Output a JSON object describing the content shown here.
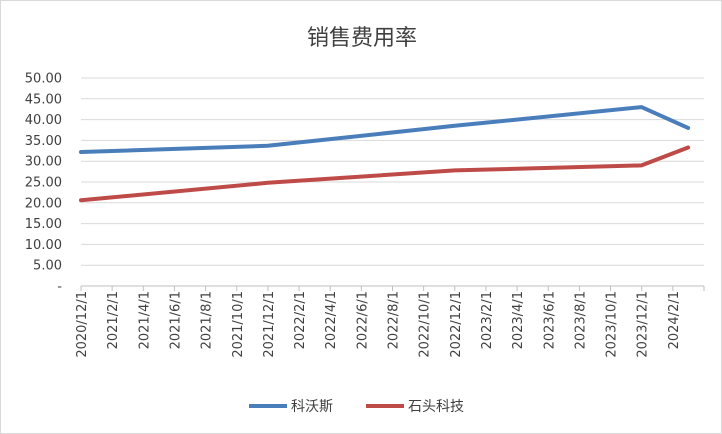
{
  "chart_data": {
    "type": "line",
    "title": "销售费用率",
    "xlabel": "",
    "ylabel": "",
    "ylim": [
      0,
      50
    ],
    "y_ticks": [
      "-",
      "5.00",
      "10.00",
      "15.00",
      "20.00",
      "25.00",
      "30.00",
      "35.00",
      "40.00",
      "45.00",
      "50.00"
    ],
    "x_tick_labels": [
      "2020/12/1",
      "2021/2/1",
      "2021/4/1",
      "2021/6/1",
      "2021/8/1",
      "2021/10/1",
      "2021/12/1",
      "2022/2/1",
      "2022/4/1",
      "2022/6/1",
      "2022/8/1",
      "2022/10/1",
      "2022/12/1",
      "2023/2/1",
      "2023/4/1",
      "2023/6/1",
      "2023/8/1",
      "2023/10/1",
      "2023/12/1",
      "2024/2/1"
    ],
    "grid": true,
    "legend_position": "bottom",
    "series": [
      {
        "name": "科沃斯",
        "color": "#4a7ebb",
        "points": [
          {
            "x": "2020-12-01",
            "y": 32.2
          },
          {
            "x": "2021-12-01",
            "y": 33.7
          },
          {
            "x": "2022-12-01",
            "y": 38.5
          },
          {
            "x": "2023-12-01",
            "y": 43.0
          },
          {
            "x": "2024-03-01",
            "y": 38.0
          }
        ]
      },
      {
        "name": "石头科技",
        "color": "#be4b48",
        "points": [
          {
            "x": "2020-12-01",
            "y": 20.6
          },
          {
            "x": "2021-12-01",
            "y": 24.8
          },
          {
            "x": "2022-12-01",
            "y": 27.8
          },
          {
            "x": "2023-12-01",
            "y": 29.0
          },
          {
            "x": "2024-03-01",
            "y": 33.3
          }
        ]
      }
    ]
  }
}
